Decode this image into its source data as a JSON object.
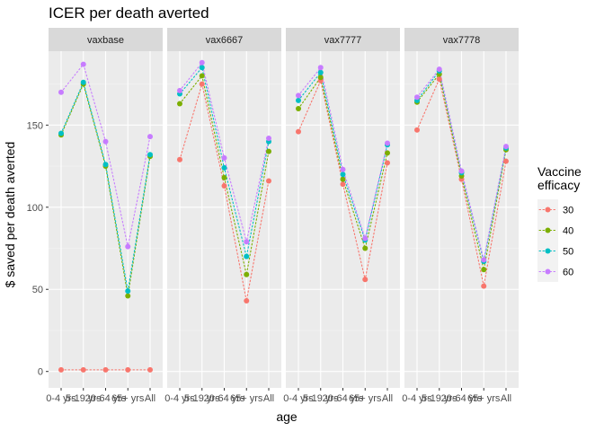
{
  "chart_data": {
    "type": "line",
    "title": "ICER per death averted",
    "xlabel": "age",
    "ylabel": "$ saved per death averted",
    "categories": [
      "0-4 yrs",
      "5-19 yrs",
      "20-64 yrs",
      "65+ yrs",
      "All"
    ],
    "ylim": [
      -10,
      195
    ],
    "yticks": [
      0,
      50,
      100,
      150
    ],
    "grid": true,
    "legend": {
      "title": "Vaccine efficacy",
      "position": "right"
    },
    "series_styles": [
      {
        "name": "30",
        "color": "#F8766D"
      },
      {
        "name": "40",
        "color": "#7CAE00"
      },
      {
        "name": "50",
        "color": "#00BFC4"
      },
      {
        "name": "60",
        "color": "#C77CFF"
      }
    ],
    "facets": [
      {
        "label": "vaxbase",
        "series": [
          {
            "name": "30",
            "values": [
              1,
              1,
              1,
              1,
              1
            ]
          },
          {
            "name": "40",
            "values": [
              144,
              175,
              125,
              46,
              131
            ]
          },
          {
            "name": "50",
            "values": [
              145,
              176,
              126,
              49,
              132
            ]
          },
          {
            "name": "60",
            "values": [
              170,
              187,
              140,
              76,
              143
            ]
          }
        ]
      },
      {
        "label": "vax6667",
        "series": [
          {
            "name": "30",
            "values": [
              129,
              175,
              113,
              43,
              116
            ]
          },
          {
            "name": "40",
            "values": [
              163,
              180,
              118,
              59,
              134
            ]
          },
          {
            "name": "50",
            "values": [
              169,
              185,
              124,
              70,
              140
            ]
          },
          {
            "name": "60",
            "values": [
              171,
              188,
              130,
              79,
              142
            ]
          }
        ]
      },
      {
        "label": "vax7777",
        "series": [
          {
            "name": "30",
            "values": [
              146,
              177,
              114,
              56,
              127
            ]
          },
          {
            "name": "40",
            "values": [
              160,
              179,
              117,
              75,
              133
            ]
          },
          {
            "name": "50",
            "values": [
              165,
              182,
              120,
              80,
              138
            ]
          },
          {
            "name": "60",
            "values": [
              168,
              185,
              123,
              81,
              139
            ]
          }
        ]
      },
      {
        "label": "vax7778",
        "series": [
          {
            "name": "30",
            "values": [
              147,
              178,
              117,
              52,
              128
            ]
          },
          {
            "name": "40",
            "values": [
              164,
              181,
              119,
              62,
              135
            ]
          },
          {
            "name": "50",
            "values": [
              165,
              183,
              121,
              67,
              136
            ]
          },
          {
            "name": "60",
            "values": [
              167,
              184,
              122,
              68,
              137
            ]
          }
        ]
      }
    ]
  }
}
